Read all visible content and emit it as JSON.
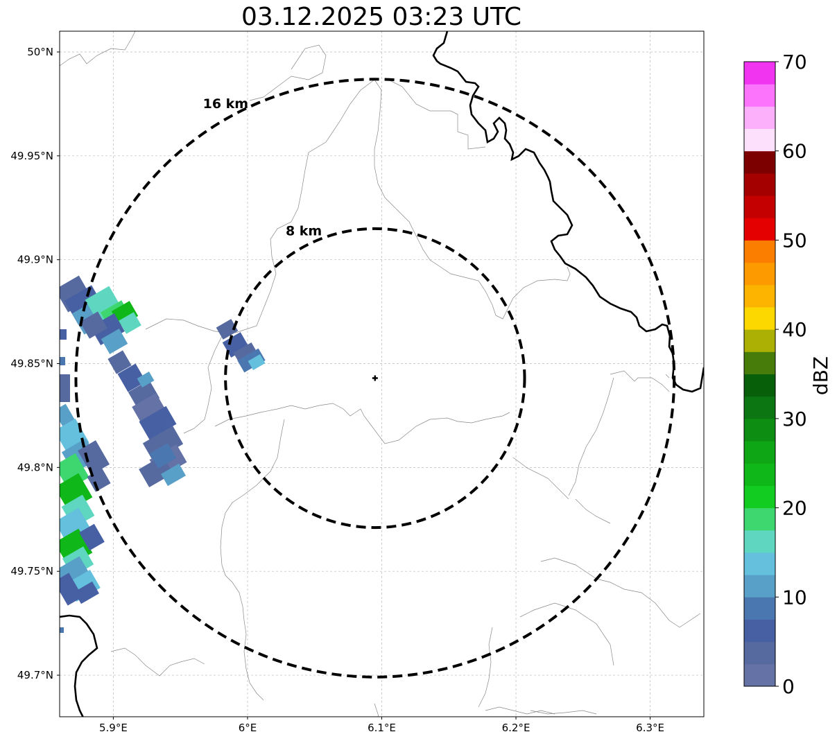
{
  "title": "03.12.2025 03:23 UTC",
  "map": {
    "lon_range": [
      5.86,
      6.34
    ],
    "lat_range": [
      49.68,
      50.01
    ],
    "x_ticks": [
      {
        "value": 5.9,
        "label": "5.9°E"
      },
      {
        "value": 6.0,
        "label": "6°E"
      },
      {
        "value": 6.1,
        "label": "6.1°E"
      },
      {
        "value": 6.2,
        "label": "6.2°E"
      },
      {
        "value": 6.3,
        "label": "6.3°E"
      }
    ],
    "y_ticks": [
      {
        "value": 50.0,
        "label": "50°N"
      },
      {
        "value": 49.95,
        "label": "49.95°N"
      },
      {
        "value": 49.9,
        "label": "49.9°N"
      },
      {
        "value": 49.85,
        "label": "49.85°N"
      },
      {
        "value": 49.8,
        "label": "49.8°N"
      },
      {
        "value": 49.75,
        "label": "49.75°N"
      },
      {
        "value": 49.7,
        "label": "49.7°N"
      }
    ],
    "grid": true,
    "radar_site": {
      "lon": 6.095,
      "lat": 49.843
    },
    "range_rings": [
      {
        "radius_km": 8,
        "label": "8 km"
      },
      {
        "radius_km": 16,
        "label": "16 km"
      }
    ]
  },
  "colorbar": {
    "label": "dBZ",
    "min": 0,
    "max": 70,
    "step": 2.5,
    "tick_labels": [
      "0",
      "10",
      "20",
      "30",
      "40",
      "50",
      "60",
      "70"
    ],
    "colors": [
      "#6472a5",
      "#566aa0",
      "#4760a3",
      "#4b77b0",
      "#58a0c8",
      "#64c0dc",
      "#5fd6c0",
      "#3ed66e",
      "#12cc22",
      "#0fb818",
      "#0ea614",
      "#0d8e12",
      "#0c7612",
      "#075f0a",
      "#487c0a",
      "#acb004",
      "#fcd800",
      "#fcb400",
      "#fc9a00",
      "#fc7e00",
      "#e40000",
      "#c40000",
      "#a40000",
      "#7c0000",
      "#fce0fc",
      "#fcb0fc",
      "#fc74fc",
      "#f034f0"
    ]
  }
}
